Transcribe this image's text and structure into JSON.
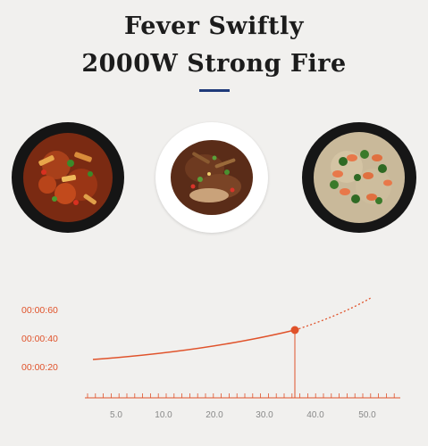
{
  "header": {
    "line1": "Fever Swiftly",
    "line2": "2000W Strong Fire",
    "accent_color": "#1f3a7a"
  },
  "dishes": [
    {
      "name": "spicy-stir-fry",
      "plate": "black"
    },
    {
      "name": "beef-vegetable-stir-fry",
      "plate": "white"
    },
    {
      "name": "shrimp-fried-rice",
      "plate": "black"
    }
  ],
  "chart_data": {
    "type": "line",
    "title": "",
    "xlabel": "",
    "ylabel": "",
    "x_ticks": [
      "5.0",
      "10.0",
      "20.0",
      "30.0",
      "40.0",
      "50.0"
    ],
    "y_ticks": [
      "00:00:60",
      "00:00:40",
      "00:00:20"
    ],
    "series_color": "#e0522a",
    "solid_segment_end_x": 35,
    "highlight_point": {
      "x": 35,
      "y": 46
    }
  }
}
